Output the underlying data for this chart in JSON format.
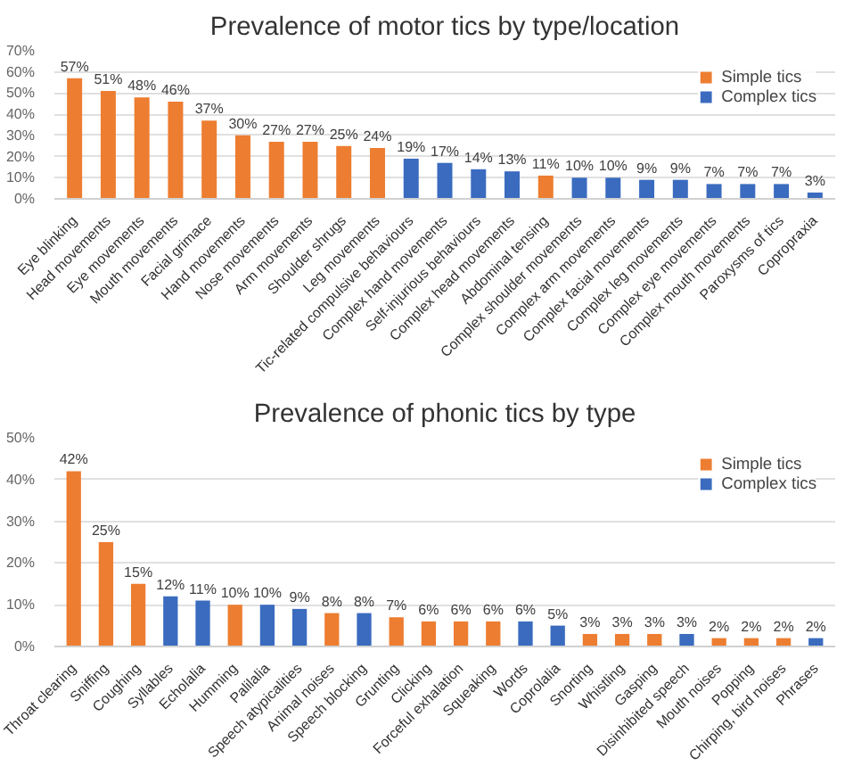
{
  "chart_data": [
    {
      "type": "bar",
      "title": "Prevalence of motor tics by type/location",
      "legend": "top right",
      "grid": "y",
      "categories": [
        "Eye blinking",
        "Head movements",
        "Eye movements",
        "Mouth movements",
        "Facial grimace",
        "Hand movements",
        "Nose movements",
        "Arm movements",
        "Shoulder shrugs",
        "Leg movements",
        "Tic-related compulsive behaviours",
        "Complex hand movements",
        "Self-injurious behaviours",
        "Complex head movements",
        "Abdominal tensing",
        "Complex shoulder movements",
        "Complex arm movements",
        "Complex facial movements",
        "Complex leg movements",
        "Complex eye movements",
        "Complex mouth movements",
        "Paroxysms of tics",
        "Copropraxia"
      ],
      "ylim": [
        0,
        70
      ],
      "yticks": [
        {
          "value": 0,
          "label": "0%"
        },
        {
          "value": 10,
          "label": "10%"
        },
        {
          "value": 20,
          "label": "20%"
        },
        {
          "value": 30,
          "label": "30%"
        },
        {
          "value": 40,
          "label": "40%"
        },
        {
          "value": 50,
          "label": "50%"
        },
        {
          "value": 60,
          "label": "60%"
        },
        {
          "value": 70,
          "label": "70%"
        }
      ],
      "series": [
        {
          "name": "Simple tics",
          "color": "#ed7d31",
          "values": [
            57,
            51,
            48,
            46,
            37,
            30,
            27,
            27,
            25,
            24,
            null,
            null,
            null,
            null,
            11,
            null,
            null,
            null,
            null,
            null,
            null,
            null,
            null
          ],
          "value_labels": [
            "57%",
            "51%",
            "48%",
            "46%",
            "37%",
            "30%",
            "27%",
            "27%",
            "25%",
            "24%",
            null,
            null,
            null,
            null,
            "11%",
            null,
            null,
            null,
            null,
            null,
            null,
            null,
            null
          ]
        },
        {
          "name": "Complex tics",
          "color": "#3a6bbf",
          "values": [
            null,
            null,
            null,
            null,
            null,
            null,
            null,
            null,
            null,
            null,
            19,
            17,
            14,
            13,
            null,
            10,
            10,
            9,
            9,
            7,
            7,
            7,
            3
          ],
          "value_labels": [
            null,
            null,
            null,
            null,
            null,
            null,
            null,
            null,
            null,
            null,
            "19%",
            "17%",
            "14%",
            "13%",
            null,
            "10%",
            "10%",
            "9%",
            "9%",
            "7%",
            "7%",
            "7%",
            "3%"
          ]
        }
      ]
    },
    {
      "type": "bar",
      "title": "Prevalence of phonic tics by type",
      "legend": "top right",
      "grid": "y",
      "categories": [
        "Throat clearing",
        "Sniffing",
        "Coughing",
        "Syllables",
        "Echolalia",
        "Humming",
        "Palilalia",
        "Speech atypicalities",
        "Animal noises",
        "Speech blocking",
        "Grunting",
        "Clicking",
        "Forceful exhalation",
        "Squeaking",
        "Words",
        "Coprolalia",
        "Snorting",
        "Whistling",
        "Gasping",
        "Disinhibited speech",
        "Mouth noises",
        "Popping",
        "Chirping, bird noises",
        "Phrases"
      ],
      "ylim": [
        0,
        50
      ],
      "yticks": [
        {
          "value": 0,
          "label": "0%"
        },
        {
          "value": 10,
          "label": "10%"
        },
        {
          "value": 20,
          "label": "20%"
        },
        {
          "value": 30,
          "label": "30%"
        },
        {
          "value": 40,
          "label": "40%"
        },
        {
          "value": 50,
          "label": "50%"
        }
      ],
      "series": [
        {
          "name": "Simple tics",
          "color": "#ed7d31",
          "values": [
            42,
            25,
            15,
            null,
            null,
            10,
            null,
            null,
            8,
            null,
            7,
            6,
            6,
            6,
            null,
            null,
            3,
            3,
            3,
            null,
            2,
            2,
            2,
            null
          ],
          "value_labels": [
            "42%",
            "25%",
            "15%",
            null,
            null,
            "10%",
            null,
            null,
            "8%",
            null,
            "7%",
            "6%",
            "6%",
            "6%",
            null,
            null,
            "3%",
            "3%",
            "3%",
            null,
            "2%",
            "2%",
            "2%",
            null
          ]
        },
        {
          "name": "Complex tics",
          "color": "#3a6bbf",
          "values": [
            null,
            null,
            null,
            12,
            11,
            null,
            10,
            9,
            null,
            8,
            null,
            null,
            null,
            null,
            6,
            5,
            null,
            null,
            null,
            3,
            null,
            null,
            null,
            2
          ],
          "value_labels": [
            null,
            null,
            null,
            "12%",
            "11%",
            null,
            "10%",
            "9%",
            null,
            "8%",
            null,
            null,
            null,
            null,
            "6%",
            "5%",
            null,
            null,
            null,
            "3%",
            null,
            null,
            null,
            "2%"
          ]
        }
      ]
    }
  ]
}
